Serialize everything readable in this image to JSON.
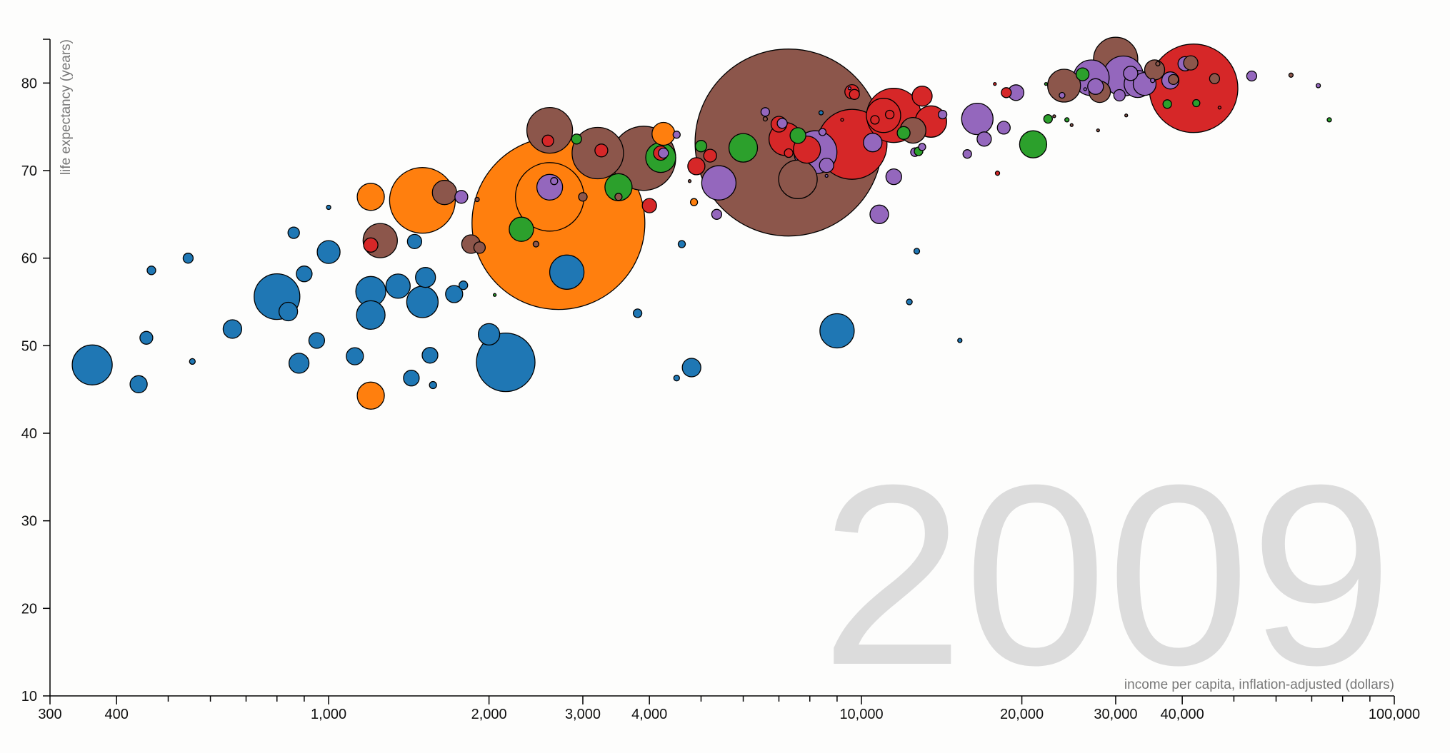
{
  "chart_data": {
    "type": "scatter",
    "title": "",
    "year_label": "2009",
    "xlabel": "income per capita, inflation-adjusted (dollars)",
    "ylabel": "life expectancy (years)",
    "x_scale": "log",
    "xlim": [
      300,
      100000
    ],
    "ylim": [
      10,
      85
    ],
    "x_ticks": [
      {
        "value": 300,
        "label": "300"
      },
      {
        "value": 400,
        "label": "400"
      },
      {
        "value": 500,
        "label": ""
      },
      {
        "value": 600,
        "label": ""
      },
      {
        "value": 700,
        "label": ""
      },
      {
        "value": 800,
        "label": ""
      },
      {
        "value": 900,
        "label": ""
      },
      {
        "value": 1000,
        "label": "1,000"
      },
      {
        "value": 2000,
        "label": "2,000"
      },
      {
        "value": 3000,
        "label": "3,000"
      },
      {
        "value": 4000,
        "label": "4,000"
      },
      {
        "value": 5000,
        "label": ""
      },
      {
        "value": 6000,
        "label": ""
      },
      {
        "value": 7000,
        "label": ""
      },
      {
        "value": 8000,
        "label": ""
      },
      {
        "value": 9000,
        "label": ""
      },
      {
        "value": 10000,
        "label": "10,000"
      },
      {
        "value": 20000,
        "label": "20,000"
      },
      {
        "value": 30000,
        "label": "30,000"
      },
      {
        "value": 40000,
        "label": "40,000"
      },
      {
        "value": 50000,
        "label": ""
      },
      {
        "value": 60000,
        "label": ""
      },
      {
        "value": 70000,
        "label": ""
      },
      {
        "value": 80000,
        "label": ""
      },
      {
        "value": 90000,
        "label": ""
      },
      {
        "value": 100000,
        "label": "100,000"
      }
    ],
    "y_ticks": [
      {
        "value": 10,
        "label": "10"
      },
      {
        "value": 20,
        "label": "20"
      },
      {
        "value": 30,
        "label": "30"
      },
      {
        "value": 40,
        "label": "40"
      },
      {
        "value": 50,
        "label": "50"
      },
      {
        "value": 60,
        "label": "60"
      },
      {
        "value": 70,
        "label": "70"
      },
      {
        "value": 80,
        "label": "80"
      }
    ],
    "grid": false,
    "colors": {
      "blue": "#1f77b4",
      "orange": "#ff7f0e",
      "green": "#2ca02c",
      "red": "#d62728",
      "purple": "#9467bd",
      "brown": "#8c564b"
    },
    "points": [
      {
        "x": 7300,
        "y": 73.2,
        "r": 131,
        "color": "brown"
      },
      {
        "x": 2700,
        "y": 64.0,
        "r": 121,
        "color": "orange"
      },
      {
        "x": 42000,
        "y": 79.4,
        "r": 62,
        "color": "red"
      },
      {
        "x": 9600,
        "y": 73.0,
        "r": 49,
        "color": "red"
      },
      {
        "x": 3900,
        "y": 71.4,
        "r": 45,
        "color": "brown"
      },
      {
        "x": 2150,
        "y": 48.1,
        "r": 41,
        "color": "blue"
      },
      {
        "x": 2600,
        "y": 67.0,
        "r": 48,
        "color": "orange"
      },
      {
        "x": 30000,
        "y": 82.7,
        "r": 31,
        "color": "brown"
      },
      {
        "x": 1500,
        "y": 66.6,
        "r": 46,
        "color": "orange"
      },
      {
        "x": 3200,
        "y": 72.0,
        "r": 36,
        "color": "brown"
      },
      {
        "x": 11500,
        "y": 76.3,
        "r": 38,
        "color": "red"
      },
      {
        "x": 8200,
        "y": 72.1,
        "r": 30,
        "color": "purple"
      },
      {
        "x": 360,
        "y": 47.8,
        "r": 28,
        "color": "blue"
      },
      {
        "x": 800,
        "y": 55.6,
        "r": 32,
        "color": "blue"
      },
      {
        "x": 2600,
        "y": 74.6,
        "r": 32,
        "color": "brown"
      },
      {
        "x": 31000,
        "y": 80.8,
        "r": 28,
        "color": "purple"
      },
      {
        "x": 27000,
        "y": 80.6,
        "r": 25,
        "color": "purple"
      },
      {
        "x": 16500,
        "y": 75.9,
        "r": 22,
        "color": "purple"
      },
      {
        "x": 13500,
        "y": 75.6,
        "r": 22,
        "color": "red"
      },
      {
        "x": 7200,
        "y": 73.6,
        "r": 23,
        "color": "red"
      },
      {
        "x": 7600,
        "y": 69.0,
        "r": 27,
        "color": "brown"
      },
      {
        "x": 9000,
        "y": 51.7,
        "r": 24,
        "color": "blue"
      },
      {
        "x": 5400,
        "y": 68.6,
        "r": 24,
        "color": "purple"
      },
      {
        "x": 1250,
        "y": 62.0,
        "r": 24,
        "color": "brown"
      },
      {
        "x": 2800,
        "y": 58.4,
        "r": 24,
        "color": "blue"
      },
      {
        "x": 24000,
        "y": 79.7,
        "r": 23,
        "color": "brown"
      },
      {
        "x": 1200,
        "y": 56.2,
        "r": 21,
        "color": "blue"
      },
      {
        "x": 1200,
        "y": 53.5,
        "r": 20,
        "color": "blue"
      },
      {
        "x": 1500,
        "y": 55.0,
        "r": 22,
        "color": "blue"
      },
      {
        "x": 21000,
        "y": 73.0,
        "r": 19,
        "color": "green"
      },
      {
        "x": 6000,
        "y": 72.6,
        "r": 20,
        "color": "green"
      },
      {
        "x": 3500,
        "y": 68.1,
        "r": 19,
        "color": "green"
      },
      {
        "x": 4200,
        "y": 71.5,
        "r": 21,
        "color": "green"
      },
      {
        "x": 7900,
        "y": 72.4,
        "r": 19,
        "color": "red"
      },
      {
        "x": 12500,
        "y": 74.6,
        "r": 18,
        "color": "brown"
      },
      {
        "x": 1350,
        "y": 56.8,
        "r": 17,
        "color": "blue"
      },
      {
        "x": 1200,
        "y": 67.0,
        "r": 19,
        "color": "orange"
      },
      {
        "x": 1650,
        "y": 67.5,
        "r": 17,
        "color": "brown"
      },
      {
        "x": 1200,
        "y": 44.3,
        "r": 19,
        "color": "orange"
      },
      {
        "x": 1000,
        "y": 60.7,
        "r": 16,
        "color": "blue"
      },
      {
        "x": 2000,
        "y": 51.3,
        "r": 15,
        "color": "blue"
      },
      {
        "x": 2600,
        "y": 68.1,
        "r": 18,
        "color": "purple"
      },
      {
        "x": 2300,
        "y": 63.3,
        "r": 17,
        "color": "green"
      },
      {
        "x": 33000,
        "y": 79.9,
        "r": 19,
        "color": "purple"
      },
      {
        "x": 34000,
        "y": 79.9,
        "r": 16,
        "color": "purple"
      },
      {
        "x": 35500,
        "y": 81.5,
        "r": 14,
        "color": "brown"
      },
      {
        "x": 28000,
        "y": 79.0,
        "r": 15,
        "color": "brown"
      },
      {
        "x": 10500,
        "y": 73.2,
        "r": 13,
        "color": "purple"
      },
      {
        "x": 4250,
        "y": 74.2,
        "r": 16,
        "color": "orange"
      },
      {
        "x": 1850,
        "y": 61.6,
        "r": 13,
        "color": "brown"
      },
      {
        "x": 1520,
        "y": 57.8,
        "r": 14,
        "color": "blue"
      },
      {
        "x": 840,
        "y": 53.9,
        "r": 13,
        "color": "blue"
      },
      {
        "x": 660,
        "y": 51.9,
        "r": 13,
        "color": "blue"
      },
      {
        "x": 880,
        "y": 48.0,
        "r": 14,
        "color": "blue"
      },
      {
        "x": 11000,
        "y": 76.3,
        "r": 24,
        "color": "red"
      },
      {
        "x": 13000,
        "y": 78.5,
        "r": 14,
        "color": "red"
      },
      {
        "x": 10800,
        "y": 65.0,
        "r": 13,
        "color": "purple"
      },
      {
        "x": 4900,
        "y": 70.5,
        "r": 12,
        "color": "red"
      },
      {
        "x": 4800,
        "y": 47.5,
        "r": 13,
        "color": "blue"
      },
      {
        "x": 1120,
        "y": 48.8,
        "r": 12,
        "color": "blue"
      },
      {
        "x": 1550,
        "y": 48.9,
        "r": 11,
        "color": "blue"
      },
      {
        "x": 950,
        "y": 50.6,
        "r": 11,
        "color": "blue"
      },
      {
        "x": 900,
        "y": 58.2,
        "r": 11,
        "color": "blue"
      },
      {
        "x": 1720,
        "y": 55.9,
        "r": 12,
        "color": "blue"
      },
      {
        "x": 1430,
        "y": 46.3,
        "r": 11,
        "color": "blue"
      },
      {
        "x": 440,
        "y": 45.6,
        "r": 12,
        "color": "blue"
      },
      {
        "x": 19500,
        "y": 78.9,
        "r": 11,
        "color": "purple"
      },
      {
        "x": 17000,
        "y": 73.6,
        "r": 10,
        "color": "purple"
      },
      {
        "x": 11500,
        "y": 69.3,
        "r": 11,
        "color": "purple"
      },
      {
        "x": 38000,
        "y": 80.3,
        "r": 12,
        "color": "purple"
      },
      {
        "x": 40500,
        "y": 82.2,
        "r": 10,
        "color": "purple"
      },
      {
        "x": 41500,
        "y": 82.3,
        "r": 10,
        "color": "brown"
      },
      {
        "x": 4200,
        "y": 72.0,
        "r": 10,
        "color": "red"
      },
      {
        "x": 4000,
        "y": 66.0,
        "r": 10,
        "color": "red"
      },
      {
        "x": 5200,
        "y": 71.7,
        "r": 9,
        "color": "red"
      },
      {
        "x": 7000,
        "y": 75.3,
        "r": 11,
        "color": "red"
      },
      {
        "x": 8600,
        "y": 70.6,
        "r": 10,
        "color": "purple"
      },
      {
        "x": 12000,
        "y": 74.3,
        "r": 9,
        "color": "green"
      },
      {
        "x": 9600,
        "y": 79.0,
        "r": 10,
        "color": "red"
      },
      {
        "x": 18500,
        "y": 74.9,
        "r": 9,
        "color": "purple"
      },
      {
        "x": 27500,
        "y": 79.6,
        "r": 11,
        "color": "purple"
      },
      {
        "x": 32000,
        "y": 81.1,
        "r": 10,
        "color": "purple"
      },
      {
        "x": 30500,
        "y": 78.6,
        "r": 8,
        "color": "purple"
      },
      {
        "x": 26000,
        "y": 81.0,
        "r": 9,
        "color": "green"
      },
      {
        "x": 1200,
        "y": 61.5,
        "r": 10,
        "color": "red"
      },
      {
        "x": 3250,
        "y": 72.3,
        "r": 9,
        "color": "red"
      },
      {
        "x": 2580,
        "y": 73.4,
        "r": 8,
        "color": "red"
      },
      {
        "x": 1775,
        "y": 67.0,
        "r": 9,
        "color": "purple"
      },
      {
        "x": 2920,
        "y": 73.6,
        "r": 7,
        "color": "green"
      },
      {
        "x": 860,
        "y": 62.9,
        "r": 8,
        "color": "blue"
      },
      {
        "x": 1450,
        "y": 61.9,
        "r": 10,
        "color": "blue"
      },
      {
        "x": 1920,
        "y": 61.2,
        "r": 8,
        "color": "brown"
      },
      {
        "x": 1000,
        "y": 65.8,
        "r": 3,
        "color": "blue"
      },
      {
        "x": 545,
        "y": 60.0,
        "r": 7,
        "color": "blue"
      },
      {
        "x": 465,
        "y": 58.6,
        "r": 6,
        "color": "blue"
      },
      {
        "x": 455,
        "y": 50.9,
        "r": 9,
        "color": "blue"
      },
      {
        "x": 555,
        "y": 48.2,
        "r": 4,
        "color": "blue"
      },
      {
        "x": 1790,
        "y": 56.9,
        "r": 6,
        "color": "blue"
      },
      {
        "x": 1570,
        "y": 45.5,
        "r": 5,
        "color": "blue"
      },
      {
        "x": 3800,
        "y": 53.7,
        "r": 6,
        "color": "blue"
      },
      {
        "x": 4600,
        "y": 61.6,
        "r": 5,
        "color": "blue"
      },
      {
        "x": 4500,
        "y": 46.3,
        "r": 4,
        "color": "blue"
      },
      {
        "x": 4850,
        "y": 66.4,
        "r": 5,
        "color": "orange"
      },
      {
        "x": 5350,
        "y": 65.0,
        "r": 7,
        "color": "purple"
      },
      {
        "x": 6600,
        "y": 76.7,
        "r": 6,
        "color": "purple"
      },
      {
        "x": 7100,
        "y": 75.4,
        "r": 7,
        "color": "purple"
      },
      {
        "x": 7300,
        "y": 72.0,
        "r": 6,
        "color": "red"
      },
      {
        "x": 8450,
        "y": 74.4,
        "r": 5,
        "color": "purple"
      },
      {
        "x": 5000,
        "y": 72.8,
        "r": 8,
        "color": "green"
      },
      {
        "x": 7600,
        "y": 74.0,
        "r": 11,
        "color": "green"
      },
      {
        "x": 12600,
        "y": 72.1,
        "r": 6,
        "color": "purple"
      },
      {
        "x": 13000,
        "y": 72.7,
        "r": 5,
        "color": "purple"
      },
      {
        "x": 12800,
        "y": 72.2,
        "r": 6,
        "color": "green"
      },
      {
        "x": 14200,
        "y": 76.4,
        "r": 6,
        "color": "purple"
      },
      {
        "x": 12700,
        "y": 60.8,
        "r": 4,
        "color": "blue"
      },
      {
        "x": 12300,
        "y": 55.0,
        "r": 4,
        "color": "blue"
      },
      {
        "x": 15300,
        "y": 50.6,
        "r": 3,
        "color": "blue"
      },
      {
        "x": 15800,
        "y": 71.9,
        "r": 6,
        "color": "purple"
      },
      {
        "x": 18000,
        "y": 69.7,
        "r": 3,
        "color": "red"
      },
      {
        "x": 17800,
        "y": 79.9,
        "r": 2,
        "color": "red"
      },
      {
        "x": 18700,
        "y": 78.9,
        "r": 7,
        "color": "red"
      },
      {
        "x": 22200,
        "y": 79.9,
        "r": 2,
        "color": "green"
      },
      {
        "x": 22400,
        "y": 75.9,
        "r": 6,
        "color": "green"
      },
      {
        "x": 23000,
        "y": 76.2,
        "r": 2,
        "color": "brown"
      },
      {
        "x": 24300,
        "y": 75.8,
        "r": 3,
        "color": "green"
      },
      {
        "x": 24800,
        "y": 75.2,
        "r": 2,
        "color": "brown"
      },
      {
        "x": 26300,
        "y": 79.3,
        "r": 2,
        "color": "purple"
      },
      {
        "x": 27800,
        "y": 74.6,
        "r": 2,
        "color": "brown"
      },
      {
        "x": 31400,
        "y": 76.3,
        "r": 2,
        "color": "brown"
      },
      {
        "x": 37500,
        "y": 77.6,
        "r": 6,
        "color": "green"
      },
      {
        "x": 42500,
        "y": 77.7,
        "r": 5,
        "color": "green"
      },
      {
        "x": 46000,
        "y": 80.5,
        "r": 7,
        "color": "brown"
      },
      {
        "x": 47000,
        "y": 77.2,
        "r": 2,
        "color": "red"
      },
      {
        "x": 54000,
        "y": 80.8,
        "r": 7,
        "color": "purple"
      },
      {
        "x": 64000,
        "y": 80.9,
        "r": 3,
        "color": "brown"
      },
      {
        "x": 72000,
        "y": 79.7,
        "r": 3,
        "color": "purple"
      },
      {
        "x": 75500,
        "y": 75.8,
        "r": 3,
        "color": "green"
      },
      {
        "x": 4250,
        "y": 72.0,
        "r": 7,
        "color": "purple"
      },
      {
        "x": 4500,
        "y": 74.1,
        "r": 5,
        "color": "purple"
      },
      {
        "x": 3500,
        "y": 67.0,
        "r": 5,
        "color": "brown"
      },
      {
        "x": 3000,
        "y": 67.0,
        "r": 6,
        "color": "brown"
      },
      {
        "x": 2450,
        "y": 61.6,
        "r": 4,
        "color": "brown"
      },
      {
        "x": 2050,
        "y": 55.8,
        "r": 2,
        "color": "green"
      },
      {
        "x": 1900,
        "y": 66.7,
        "r": 3,
        "color": "brown"
      },
      {
        "x": 9500,
        "y": 79.4,
        "r": 2,
        "color": "purple"
      },
      {
        "x": 9700,
        "y": 78.7,
        "r": 7,
        "color": "red"
      },
      {
        "x": 8400,
        "y": 76.6,
        "r": 3,
        "color": "blue"
      },
      {
        "x": 6600,
        "y": 75.9,
        "r": 3,
        "color": "brown"
      },
      {
        "x": 10600,
        "y": 75.8,
        "r": 6,
        "color": "red"
      },
      {
        "x": 11300,
        "y": 76.4,
        "r": 6,
        "color": "red"
      },
      {
        "x": 4760,
        "y": 68.8,
        "r": 2,
        "color": "brown"
      },
      {
        "x": 9200,
        "y": 75.8,
        "r": 2,
        "color": "red"
      },
      {
        "x": 8600,
        "y": 69.4,
        "r": 2,
        "color": "purple"
      },
      {
        "x": 23800,
        "y": 78.6,
        "r": 4,
        "color": "purple"
      },
      {
        "x": 35200,
        "y": 80.3,
        "r": 3,
        "color": "purple"
      },
      {
        "x": 36000,
        "y": 82.2,
        "r": 3,
        "color": "brown"
      },
      {
        "x": 38500,
        "y": 80.4,
        "r": 7,
        "color": "brown"
      },
      {
        "x": 2650,
        "y": 68.8,
        "r": 5,
        "color": "purple"
      }
    ]
  }
}
